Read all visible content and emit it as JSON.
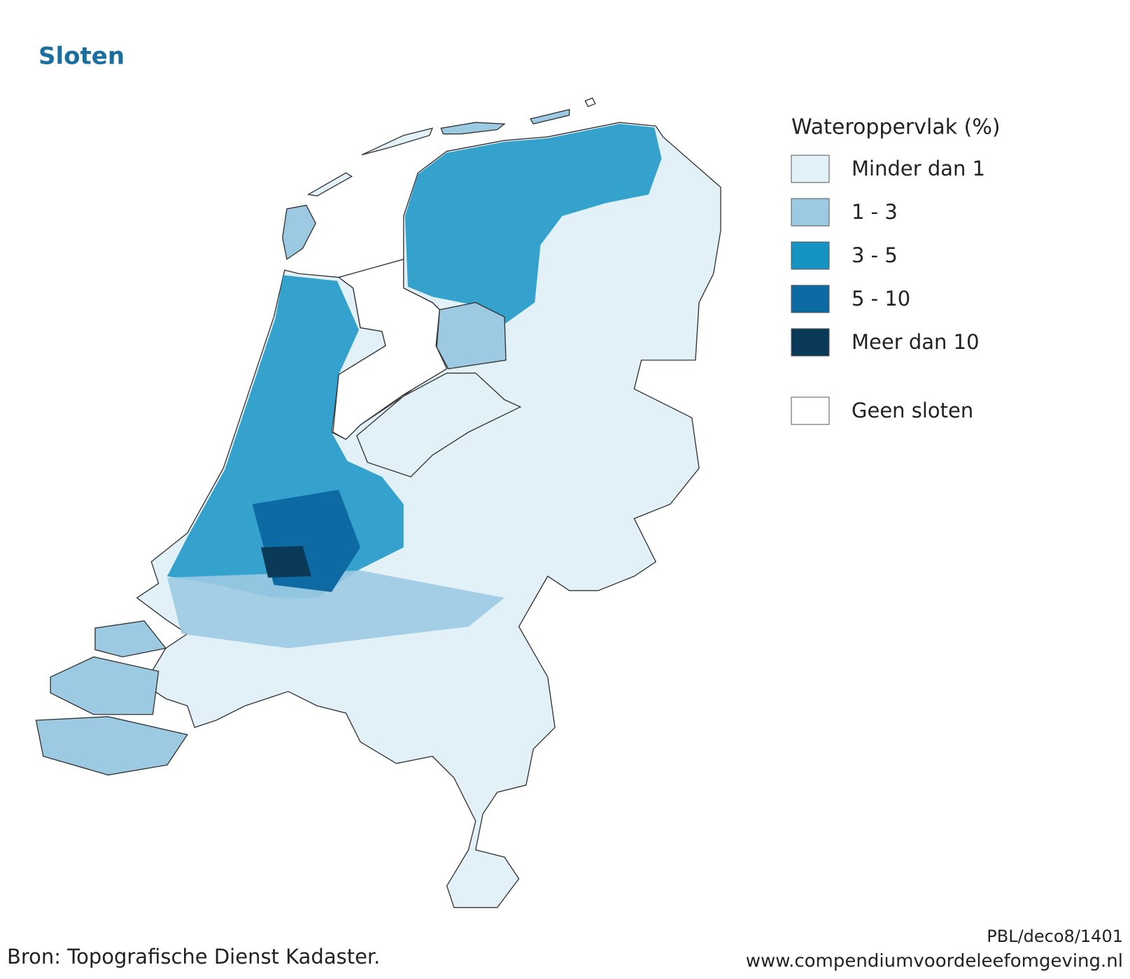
{
  "title": "Sloten",
  "legend": {
    "title": "Wateroppervlak (%)",
    "items": [
      {
        "label": "Minder dan 1",
        "color": "#e2f0f8"
      },
      {
        "label": "1 - 3",
        "color": "#9ccae2"
      },
      {
        "label": "3 - 5",
        "color": "#1594c4"
      },
      {
        "label": "5 - 10",
        "color": "#0d6aa3"
      },
      {
        "label": "Meer dan 10",
        "color": "#0a3a58"
      },
      {
        "label": "Geen sloten",
        "color": "#ffffff"
      }
    ]
  },
  "source": "Bron: Topografische Dienst Kadaster.",
  "code": "PBL/deco8/1401",
  "url": "www.compendiumvoordeleefomgeving.nl"
}
